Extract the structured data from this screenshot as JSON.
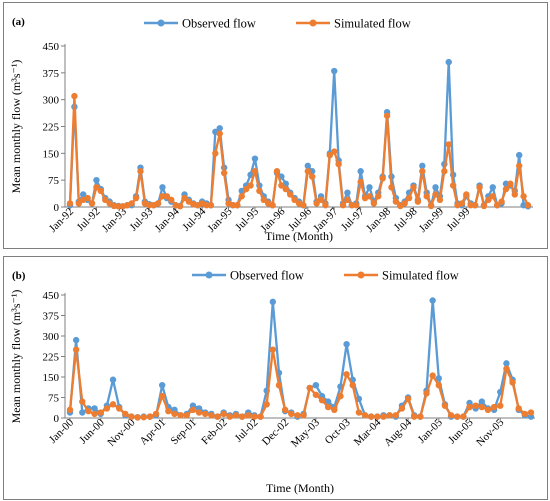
{
  "chart_data": [
    {
      "type": "line",
      "panel_label": "(a)",
      "xlabel": "Time (Month)",
      "ylabel": "Mean monthly flow (m³s⁻¹)",
      "ylim": [
        0,
        450
      ],
      "y_ticks": [
        0,
        75,
        150,
        225,
        300,
        375,
        450
      ],
      "grid": false,
      "legend": "top",
      "x_tick_labels": [
        "Jan-92",
        "Jul-92",
        "Jan-93",
        "Jul-93",
        "Jan-94",
        "Jul-94",
        "Jan-95",
        "Jul-95",
        "Jan-96",
        "Jul-96",
        "Jan-97",
        "Jul-97",
        "Jan-98",
        "Jul-98",
        "Jan-99",
        "Jul-99"
      ],
      "tick_every": 6,
      "series": [
        {
          "name": "Observed flow",
          "color": "#5b9bd5",
          "values": [
            5,
            280,
            15,
            35,
            20,
            10,
            75,
            50,
            25,
            15,
            5,
            3,
            2,
            5,
            5,
            30,
            110,
            15,
            8,
            5,
            10,
            55,
            25,
            15,
            5,
            3,
            35,
            20,
            10,
            5,
            15,
            10,
            5,
            210,
            220,
            110,
            20,
            5,
            5,
            45,
            60,
            90,
            135,
            60,
            30,
            15,
            5,
            95,
            85,
            65,
            40,
            25,
            15,
            5,
            115,
            100,
            15,
            30,
            10,
            150,
            380,
            130,
            10,
            40,
            5,
            10,
            100,
            30,
            55,
            15,
            40,
            85,
            265,
            85,
            25,
            5,
            15,
            40,
            60,
            20,
            115,
            40,
            5,
            55,
            30,
            120,
            405,
            90,
            10,
            5,
            30,
            10,
            5,
            60,
            5,
            30,
            55,
            5,
            10,
            65,
            60,
            45,
            145,
            5,
            2
          ]
        },
        {
          "name": "Simulated flow",
          "color": "#ed7d31",
          "values": [
            10,
            310,
            10,
            20,
            25,
            10,
            55,
            45,
            20,
            10,
            3,
            2,
            2,
            5,
            10,
            25,
            100,
            10,
            5,
            5,
            10,
            30,
            30,
            20,
            5,
            2,
            25,
            15,
            8,
            5,
            10,
            5,
            5,
            150,
            205,
            95,
            10,
            5,
            5,
            30,
            50,
            60,
            100,
            45,
            20,
            10,
            5,
            100,
            60,
            50,
            35,
            20,
            10,
            5,
            100,
            85,
            10,
            20,
            5,
            145,
            155,
            120,
            5,
            20,
            5,
            5,
            70,
            25,
            30,
            10,
            30,
            80,
            255,
            55,
            15,
            3,
            10,
            25,
            55,
            15,
            100,
            30,
            3,
            35,
            20,
            100,
            175,
            60,
            5,
            10,
            35,
            5,
            5,
            55,
            3,
            20,
            30,
            5,
            15,
            50,
            65,
            35,
            115,
            30,
            5
          ]
        }
      ]
    },
    {
      "type": "line",
      "panel_label": "(b)",
      "xlabel": "Time (Month)",
      "ylabel": "Mean monthly flow (m³s⁻¹)",
      "ylim": [
        0,
        450
      ],
      "y_ticks": [
        0,
        75,
        150,
        225,
        300,
        375,
        450
      ],
      "grid": false,
      "legend": "top",
      "x_tick_labels": [
        "Jan-00",
        "Jun-00",
        "Nov-00",
        "Apr-01",
        "Sep-01",
        "Feb-02",
        "Jul-02",
        "Dec-02",
        "May-03",
        "Oct-03",
        "Mar-04",
        "Aug-04",
        "Jan-05",
        "Jun-05",
        "Nov-05"
      ],
      "tick_every": 5,
      "series": [
        {
          "name": "Observed flow",
          "color": "#5b9bd5",
          "values": [
            20,
            285,
            20,
            35,
            35,
            15,
            45,
            140,
            40,
            10,
            5,
            3,
            5,
            5,
            10,
            120,
            40,
            30,
            10,
            15,
            45,
            35,
            20,
            15,
            5,
            20,
            10,
            15,
            5,
            20,
            10,
            5,
            100,
            425,
            165,
            25,
            20,
            5,
            15,
            110,
            120,
            80,
            60,
            40,
            115,
            270,
            140,
            70,
            10,
            5,
            5,
            10,
            10,
            5,
            45,
            75,
            10,
            5,
            100,
            430,
            145,
            50,
            5,
            5,
            5,
            55,
            35,
            60,
            35,
            30,
            95,
            200,
            140,
            30,
            10,
            5
          ]
        },
        {
          "name": "Simulated flow",
          "color": "#ed7d31",
          "values": [
            30,
            250,
            60,
            25,
            15,
            20,
            35,
            50,
            35,
            15,
            5,
            2,
            3,
            5,
            15,
            80,
            25,
            15,
            10,
            10,
            30,
            20,
            15,
            10,
            5,
            15,
            5,
            10,
            5,
            10,
            5,
            5,
            50,
            250,
            120,
            30,
            15,
            10,
            10,
            110,
            85,
            65,
            40,
            30,
            80,
            160,
            120,
            20,
            10,
            5,
            5,
            5,
            10,
            10,
            35,
            70,
            5,
            5,
            90,
            155,
            120,
            45,
            10,
            5,
            5,
            40,
            45,
            40,
            30,
            40,
            45,
            180,
            130,
            35,
            15,
            20
          ]
        }
      ]
    }
  ]
}
